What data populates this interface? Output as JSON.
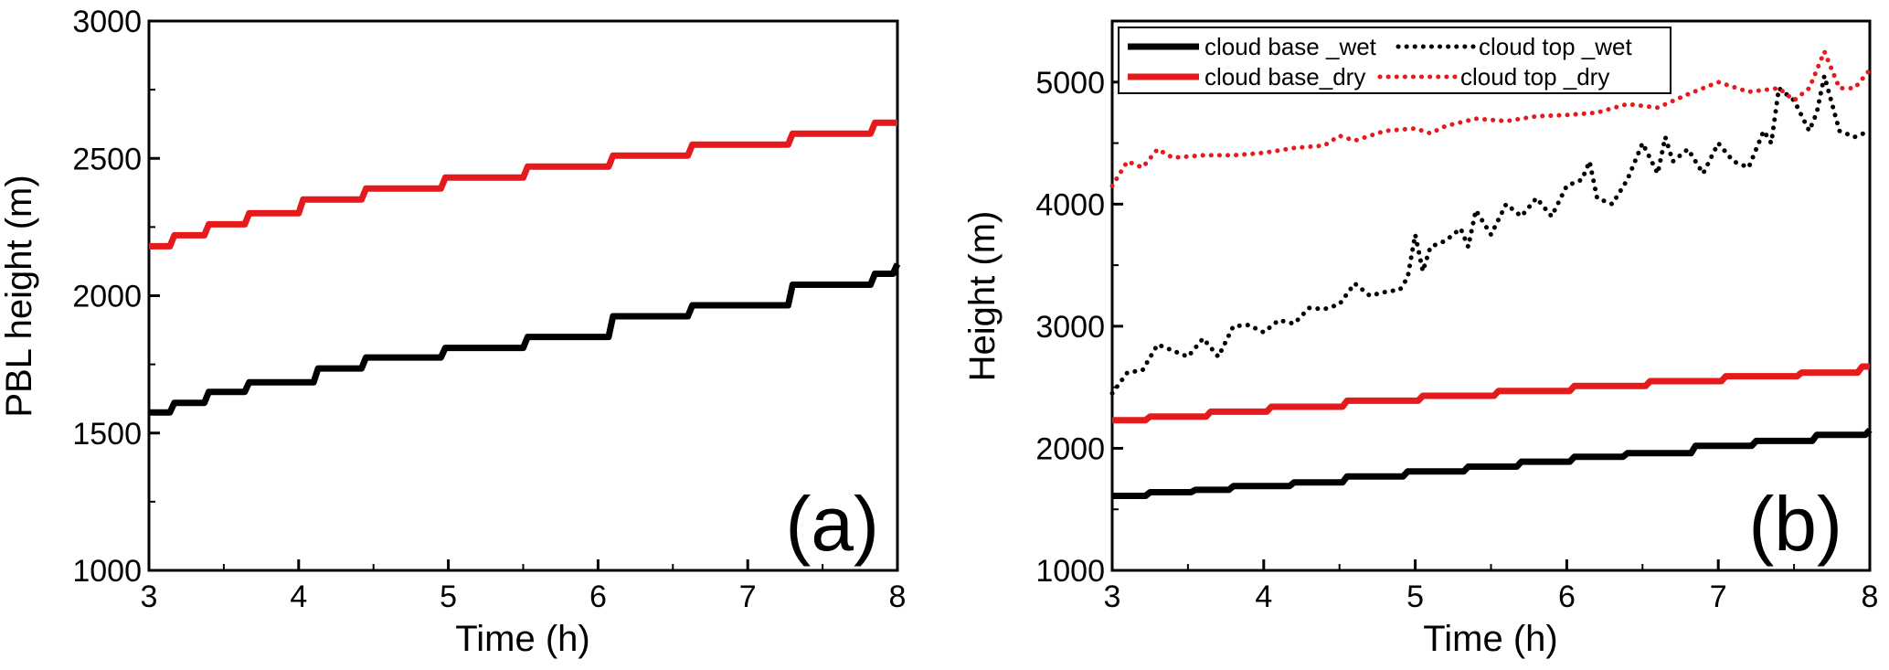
{
  "colors": {
    "black": "#000000",
    "red": "#e41a1c",
    "background": "#ffffff"
  },
  "chart_data": [
    {
      "type": "line",
      "panel_label": "(a)",
      "xlabel": "Time (h)",
      "ylabel": "PBL  height (m)",
      "xlim": [
        3,
        8
      ],
      "ylim": [
        1000,
        3000
      ],
      "xticks": [
        "3",
        "4",
        "5",
        "6",
        "7",
        "8"
      ],
      "yticks": [
        "1000",
        "1500",
        "2000",
        "2500",
        "3000"
      ],
      "grid": false,
      "series": [
        {
          "color": "#e41a1c",
          "style": "solid",
          "shape": "step",
          "x": [
            3.0,
            3.17,
            3.4,
            3.67,
            4.03,
            4.45,
            4.98,
            5.53,
            6.1,
            6.63,
            7.3,
            7.85,
            8.0
          ],
          "y": [
            2180,
            2220,
            2260,
            2300,
            2350,
            2390,
            2430,
            2470,
            2510,
            2550,
            2590,
            2630,
            2630
          ]
        },
        {
          "color": "#000000",
          "style": "solid",
          "shape": "step",
          "x": [
            3.0,
            3.17,
            3.4,
            3.67,
            4.13,
            4.45,
            4.98,
            5.53,
            6.1,
            6.63,
            7.3,
            7.85,
            8.0
          ],
          "y": [
            1575,
            1610,
            1650,
            1685,
            1735,
            1775,
            1810,
            1850,
            1925,
            1965,
            2040,
            2080,
            2115
          ]
        }
      ]
    },
    {
      "type": "line",
      "panel_label": "(b)",
      "xlabel": "Time (h)",
      "ylabel": "Height (m)",
      "xlim": [
        3,
        8
      ],
      "ylim": [
        1000,
        5500
      ],
      "xticks": [
        "3",
        "4",
        "5",
        "6",
        "7",
        "8"
      ],
      "yticks": [
        "1000",
        "2000",
        "3000",
        "4000",
        "5000"
      ],
      "grid": false,
      "legend_position": "top-left",
      "series": [
        {
          "name": "cloud base _wet",
          "color": "#000000",
          "style": "solid",
          "shape": "step",
          "x": [
            3.0,
            3.25,
            3.55,
            3.8,
            4.2,
            4.55,
            4.95,
            5.35,
            5.7,
            6.05,
            6.4,
            6.85,
            7.25,
            7.65,
            8.0
          ],
          "y": [
            1610,
            1640,
            1660,
            1690,
            1720,
            1770,
            1810,
            1850,
            1890,
            1930,
            1960,
            2020,
            2060,
            2110,
            2150
          ]
        },
        {
          "name": "cloud top _wet",
          "color": "#000000",
          "style": "dotted",
          "x": [
            3.0,
            3.1,
            3.2,
            3.3,
            3.4,
            3.5,
            3.6,
            3.7,
            3.8,
            3.9,
            4.0,
            4.1,
            4.2,
            4.3,
            4.4,
            4.5,
            4.6,
            4.7,
            4.8,
            4.9,
            4.95,
            5.0,
            5.05,
            5.1,
            5.2,
            5.3,
            5.35,
            5.4,
            5.5,
            5.6,
            5.7,
            5.8,
            5.9,
            6.0,
            6.1,
            6.15,
            6.2,
            6.3,
            6.4,
            6.5,
            6.6,
            6.65,
            6.7,
            6.8,
            6.9,
            7.0,
            7.1,
            7.2,
            7.3,
            7.35,
            7.4,
            7.5,
            7.6,
            7.65,
            7.7,
            7.8,
            7.9,
            8.0
          ],
          "y": [
            2450,
            2620,
            2640,
            2850,
            2800,
            2750,
            2900,
            2750,
            3000,
            3010,
            2950,
            3050,
            3020,
            3150,
            3140,
            3180,
            3350,
            3250,
            3280,
            3300,
            3400,
            3750,
            3450,
            3650,
            3700,
            3800,
            3650,
            3950,
            3750,
            4000,
            3900,
            4050,
            3900,
            4150,
            4200,
            4350,
            4050,
            4000,
            4200,
            4500,
            4250,
            4550,
            4350,
            4450,
            4250,
            4500,
            4350,
            4300,
            4600,
            4500,
            4950,
            4850,
            4600,
            4750,
            5050,
            4600,
            4550,
            4600
          ]
        },
        {
          "name": "cloud base_dry",
          "color": "#e41a1c",
          "style": "solid",
          "shape": "step",
          "x": [
            3.0,
            3.25,
            3.65,
            4.05,
            4.55,
            5.05,
            5.55,
            6.05,
            6.55,
            7.05,
            7.55,
            7.95,
            8.0
          ],
          "y": [
            2230,
            2260,
            2300,
            2340,
            2390,
            2430,
            2470,
            2510,
            2550,
            2590,
            2620,
            2670,
            2670
          ]
        },
        {
          "name": "cloud top _dry",
          "color": "#e41a1c",
          "style": "dotted",
          "x": [
            3.0,
            3.1,
            3.2,
            3.3,
            3.4,
            3.6,
            3.8,
            4.0,
            4.2,
            4.4,
            4.5,
            4.6,
            4.8,
            5.0,
            5.1,
            5.2,
            5.4,
            5.6,
            5.8,
            6.0,
            6.2,
            6.4,
            6.6,
            6.8,
            7.0,
            7.2,
            7.4,
            7.5,
            7.6,
            7.7,
            7.8,
            7.9,
            8.0
          ],
          "y": [
            4150,
            4350,
            4300,
            4450,
            4380,
            4400,
            4400,
            4420,
            4460,
            4480,
            4560,
            4520,
            4600,
            4620,
            4580,
            4640,
            4700,
            4680,
            4720,
            4730,
            4750,
            4820,
            4790,
            4900,
            5000,
            4920,
            4950,
            4850,
            4950,
            5250,
            4950,
            4950,
            5100
          ]
        }
      ]
    }
  ]
}
